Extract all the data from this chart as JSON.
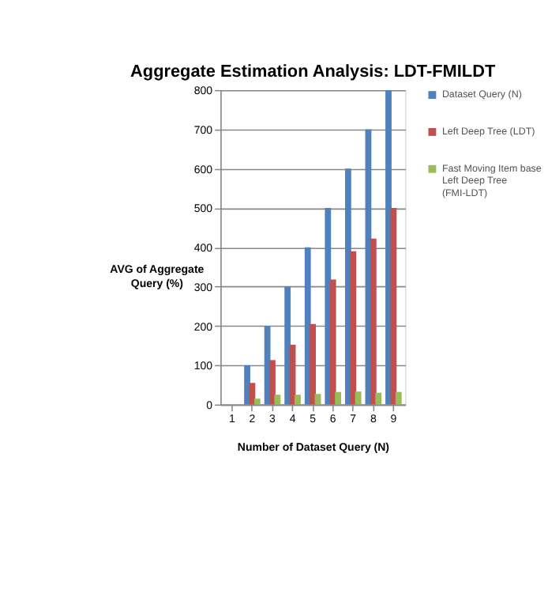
{
  "chart_data": {
    "type": "bar",
    "title": "Aggregate Estimation Analysis: LDT-FMILDT",
    "xlabel": "Number of Dataset Query (N)",
    "ylabel": "AVG of Aggregate Query (%)",
    "categories": [
      "1",
      "2",
      "3",
      "4",
      "5",
      "6",
      "7",
      "8",
      "9"
    ],
    "series": [
      {
        "name": "Dataset Query (N)",
        "color": "#4f81bd",
        "values": [
          null,
          100,
          200,
          300,
          400,
          500,
          600,
          700,
          800
        ]
      },
      {
        "name": "Left Deep Tree (LDT)",
        "color": "#c0504d",
        "values": [
          null,
          55,
          113,
          152,
          205,
          318,
          390,
          422,
          500
        ]
      },
      {
        "name": "Fast Moving Item base Left Deep Tree (FMI-LDT)",
        "color": "#9bbb59",
        "values": [
          null,
          15,
          25,
          25,
          27,
          32,
          33,
          30,
          32
        ]
      }
    ],
    "ylim": [
      0,
      800
    ],
    "yticks": [
      0,
      100,
      200,
      300,
      400,
      500,
      600,
      700,
      800
    ],
    "grid": "y",
    "legend": "right"
  }
}
